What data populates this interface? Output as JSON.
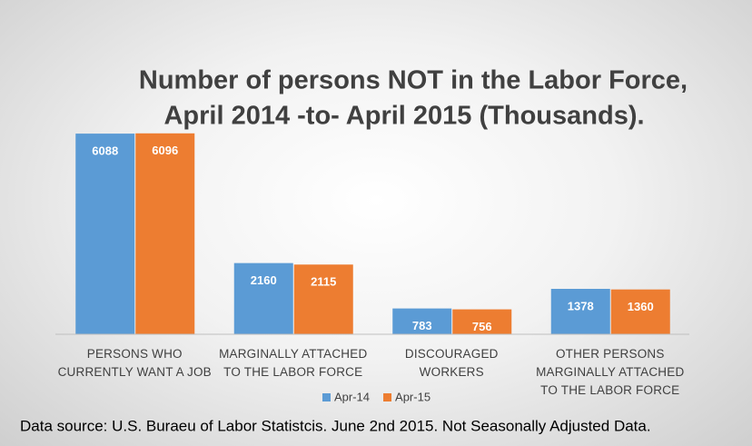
{
  "chart_data": {
    "type": "bar",
    "title": [
      "Number of persons NOT in the Labor Force,",
      "April 2014 -to- April 2015 (Thousands)."
    ],
    "categories": [
      "PERSONS WHO CURRENTLY WANT A JOB",
      "MARGINALLY ATTACHED TO THE LABOR FORCE",
      "DISCOURAGED WORKERS",
      "OTHER PERSONS MARGINALLY ATTACHED TO THE LABOR FORCE"
    ],
    "series": [
      {
        "name": "Apr-14",
        "color": "#5b9bd5",
        "values": [
          6088,
          2160,
          783,
          1378
        ]
      },
      {
        "name": "Apr-15",
        "color": "#ed7d31",
        "values": [
          6096,
          2115,
          756,
          1360
        ]
      }
    ],
    "ylim": [
      0,
      7000
    ],
    "legend": "bottom",
    "source": "Data source: U.S. Buraeu of Labor Statistcis. June 2nd 2015. Not Seasonally Adjusted Data."
  }
}
